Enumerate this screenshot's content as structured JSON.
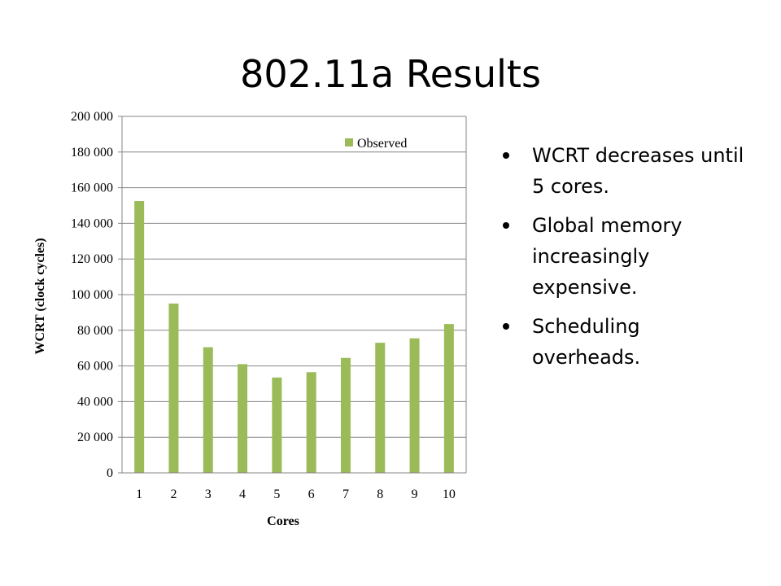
{
  "slide": {
    "title": "802.11a Results"
  },
  "bullets": [
    "WCRT decreases until 5 cores.",
    "Global memory increasingly expensive.",
    "Scheduling overheads."
  ],
  "chart_data": {
    "type": "bar",
    "categories": [
      "1",
      "2",
      "3",
      "4",
      "5",
      "6",
      "7",
      "8",
      "9",
      "10"
    ],
    "series": [
      {
        "name": "Observed",
        "values": [
          152500,
          95000,
          70500,
          61000,
          53500,
          56500,
          64500,
          73000,
          75500,
          83500
        ],
        "color": "#9bbb59"
      }
    ],
    "xlabel": "Cores",
    "ylabel": "WCRT (clock cycles)",
    "ylim": [
      0,
      200000
    ],
    "yticks": [
      0,
      20000,
      40000,
      60000,
      80000,
      100000,
      120000,
      140000,
      160000,
      180000,
      200000
    ],
    "ytick_labels": [
      "0",
      "20 000",
      "40 000",
      "60 000",
      "80 000",
      "100 000",
      "120 000",
      "140 000",
      "160 000",
      "180 000",
      "200 000"
    ],
    "grid": true,
    "legend": "top-right"
  }
}
